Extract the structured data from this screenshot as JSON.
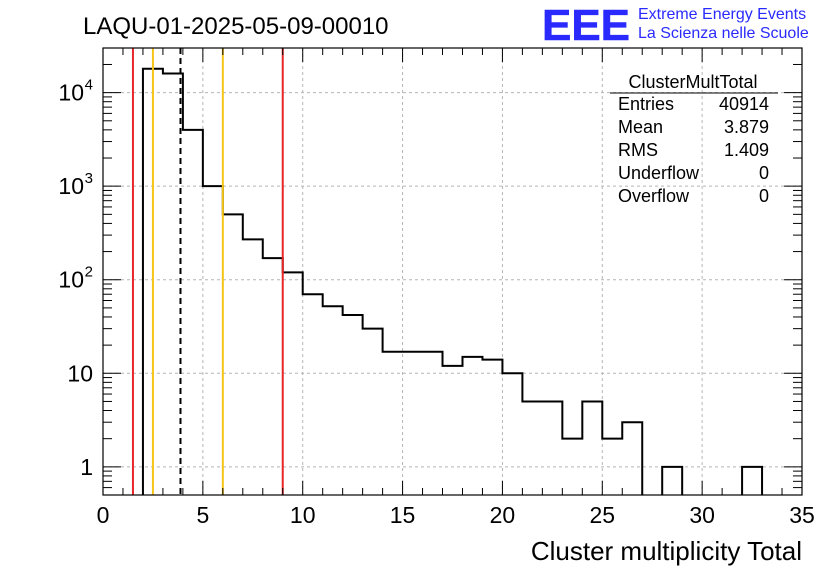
{
  "header": {
    "run_title": "LAQU-01-2025-05-09-00010",
    "logo_text": "EEE",
    "project_line1": "Extreme Energy Events",
    "project_line2": "La Scienza nelle Scuole"
  },
  "stats_box": {
    "title": "ClusterMultTotal",
    "rows": [
      {
        "label": "Entries",
        "value": "40914"
      },
      {
        "label": "Mean",
        "value": "3.879"
      },
      {
        "label": "RMS",
        "value": "1.409"
      },
      {
        "label": "Underflow",
        "value": "0"
      },
      {
        "label": "Overflow",
        "value": "0"
      }
    ]
  },
  "colors": {
    "histogram": "#000000",
    "red_line": "#e8262a",
    "yellow_line": "#f5c518",
    "grid": "#b5b5b5",
    "logo": "#2a2aff"
  },
  "chart_data": {
    "type": "histogram",
    "title": "LAQU-01-2025-05-09-00010",
    "xlabel": "Cluster multiplicity Total",
    "ylabel": "",
    "yscale": "log",
    "xlim": [
      0,
      35
    ],
    "ylim": [
      0.5,
      30000
    ],
    "grid": true,
    "bin_width": 1,
    "bins": [
      {
        "x": 2.5,
        "count": 18000
      },
      {
        "x": 3.5,
        "count": 16000
      },
      {
        "x": 4.5,
        "count": 4000
      },
      {
        "x": 5.5,
        "count": 1000
      },
      {
        "x": 6.5,
        "count": 500
      },
      {
        "x": 7.5,
        "count": 270
      },
      {
        "x": 8.5,
        "count": 170
      },
      {
        "x": 9.5,
        "count": 120
      },
      {
        "x": 10.5,
        "count": 70
      },
      {
        "x": 11.5,
        "count": 52
      },
      {
        "x": 12.5,
        "count": 42
      },
      {
        "x": 13.5,
        "count": 30
      },
      {
        "x": 14.5,
        "count": 17
      },
      {
        "x": 15.5,
        "count": 17
      },
      {
        "x": 16.5,
        "count": 17
      },
      {
        "x": 17.5,
        "count": 12
      },
      {
        "x": 18.5,
        "count": 15
      },
      {
        "x": 19.5,
        "count": 14
      },
      {
        "x": 20.5,
        "count": 10
      },
      {
        "x": 21.5,
        "count": 5
      },
      {
        "x": 22.5,
        "count": 5
      },
      {
        "x": 23.5,
        "count": 2
      },
      {
        "x": 24.5,
        "count": 5
      },
      {
        "x": 25.5,
        "count": 2
      },
      {
        "x": 26.5,
        "count": 3
      },
      {
        "x": 28.5,
        "count": 1
      },
      {
        "x": 32.5,
        "count": 1
      }
    ],
    "vertical_lines": [
      {
        "x": 1.5,
        "color": "red",
        "style": "solid"
      },
      {
        "x": 2.5,
        "color": "yellow",
        "style": "solid"
      },
      {
        "x": 3.88,
        "color": "black",
        "style": "dashed"
      },
      {
        "x": 6.0,
        "color": "yellow",
        "style": "solid"
      },
      {
        "x": 9.0,
        "color": "red",
        "style": "solid"
      }
    ],
    "x_ticks": [
      {
        "value": 0,
        "label": "0"
      },
      {
        "value": 5,
        "label": "5"
      },
      {
        "value": 10,
        "label": "10"
      },
      {
        "value": 15,
        "label": "15"
      },
      {
        "value": 20,
        "label": "20"
      },
      {
        "value": 25,
        "label": "25"
      },
      {
        "value": 30,
        "label": "30"
      },
      {
        "value": 35,
        "label": "35"
      }
    ],
    "y_ticks": [
      {
        "value": 1,
        "base": "1",
        "exp": ""
      },
      {
        "value": 10,
        "base": "10",
        "exp": ""
      },
      {
        "value": 100,
        "base": "10",
        "exp": "2"
      },
      {
        "value": 1000,
        "base": "10",
        "exp": "3"
      },
      {
        "value": 10000,
        "base": "10",
        "exp": "4"
      }
    ]
  }
}
